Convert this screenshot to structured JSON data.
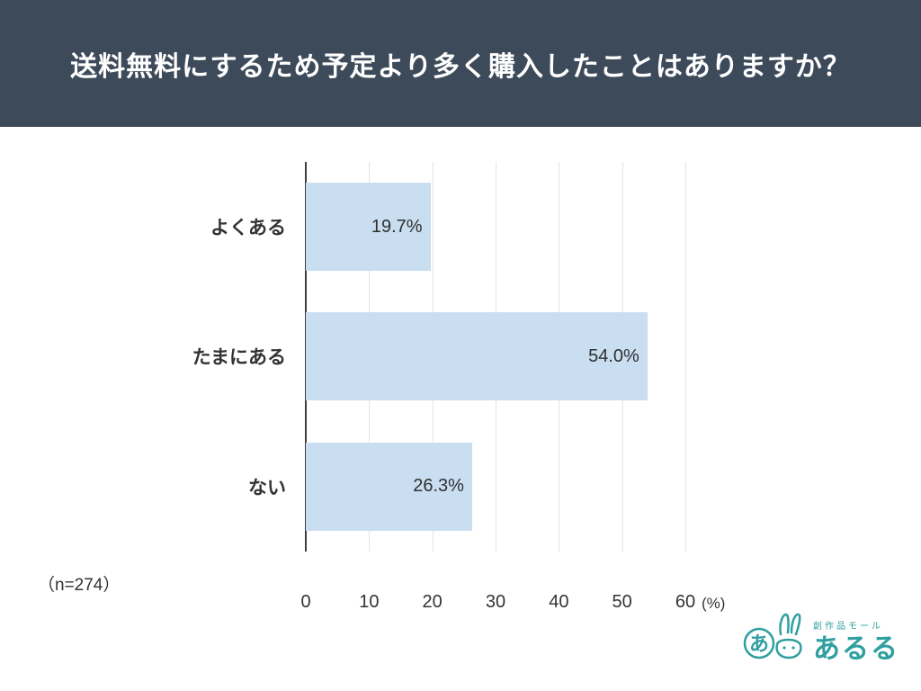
{
  "header": {
    "title": "送料無料にするため予定より多く購入したことはありますか？",
    "bg_color": "#3d4a59"
  },
  "chart_data": {
    "type": "bar",
    "orientation": "horizontal",
    "title": "送料無料にするため予定より多く購入したことはありますか？",
    "categories": [
      "よくある",
      "たまにある",
      "ない"
    ],
    "values": [
      19.7,
      54.0,
      26.3
    ],
    "value_labels": [
      "19.7%",
      "54.0%",
      "26.3%"
    ],
    "x_ticks": [
      "0",
      "10",
      "20",
      "30",
      "40",
      "50",
      "60"
    ],
    "x_tick_values": [
      0,
      10,
      20,
      30,
      40,
      50,
      60
    ],
    "x_unit": "(%)",
    "xlim": [
      0,
      60
    ],
    "bar_color": "#c9def1",
    "grid": true,
    "legend": false
  },
  "footer": {
    "sample_note": "（n=274）"
  },
  "logo": {
    "tagline": "創作品モール",
    "name": "あるる",
    "color": "#2f9f9f"
  }
}
